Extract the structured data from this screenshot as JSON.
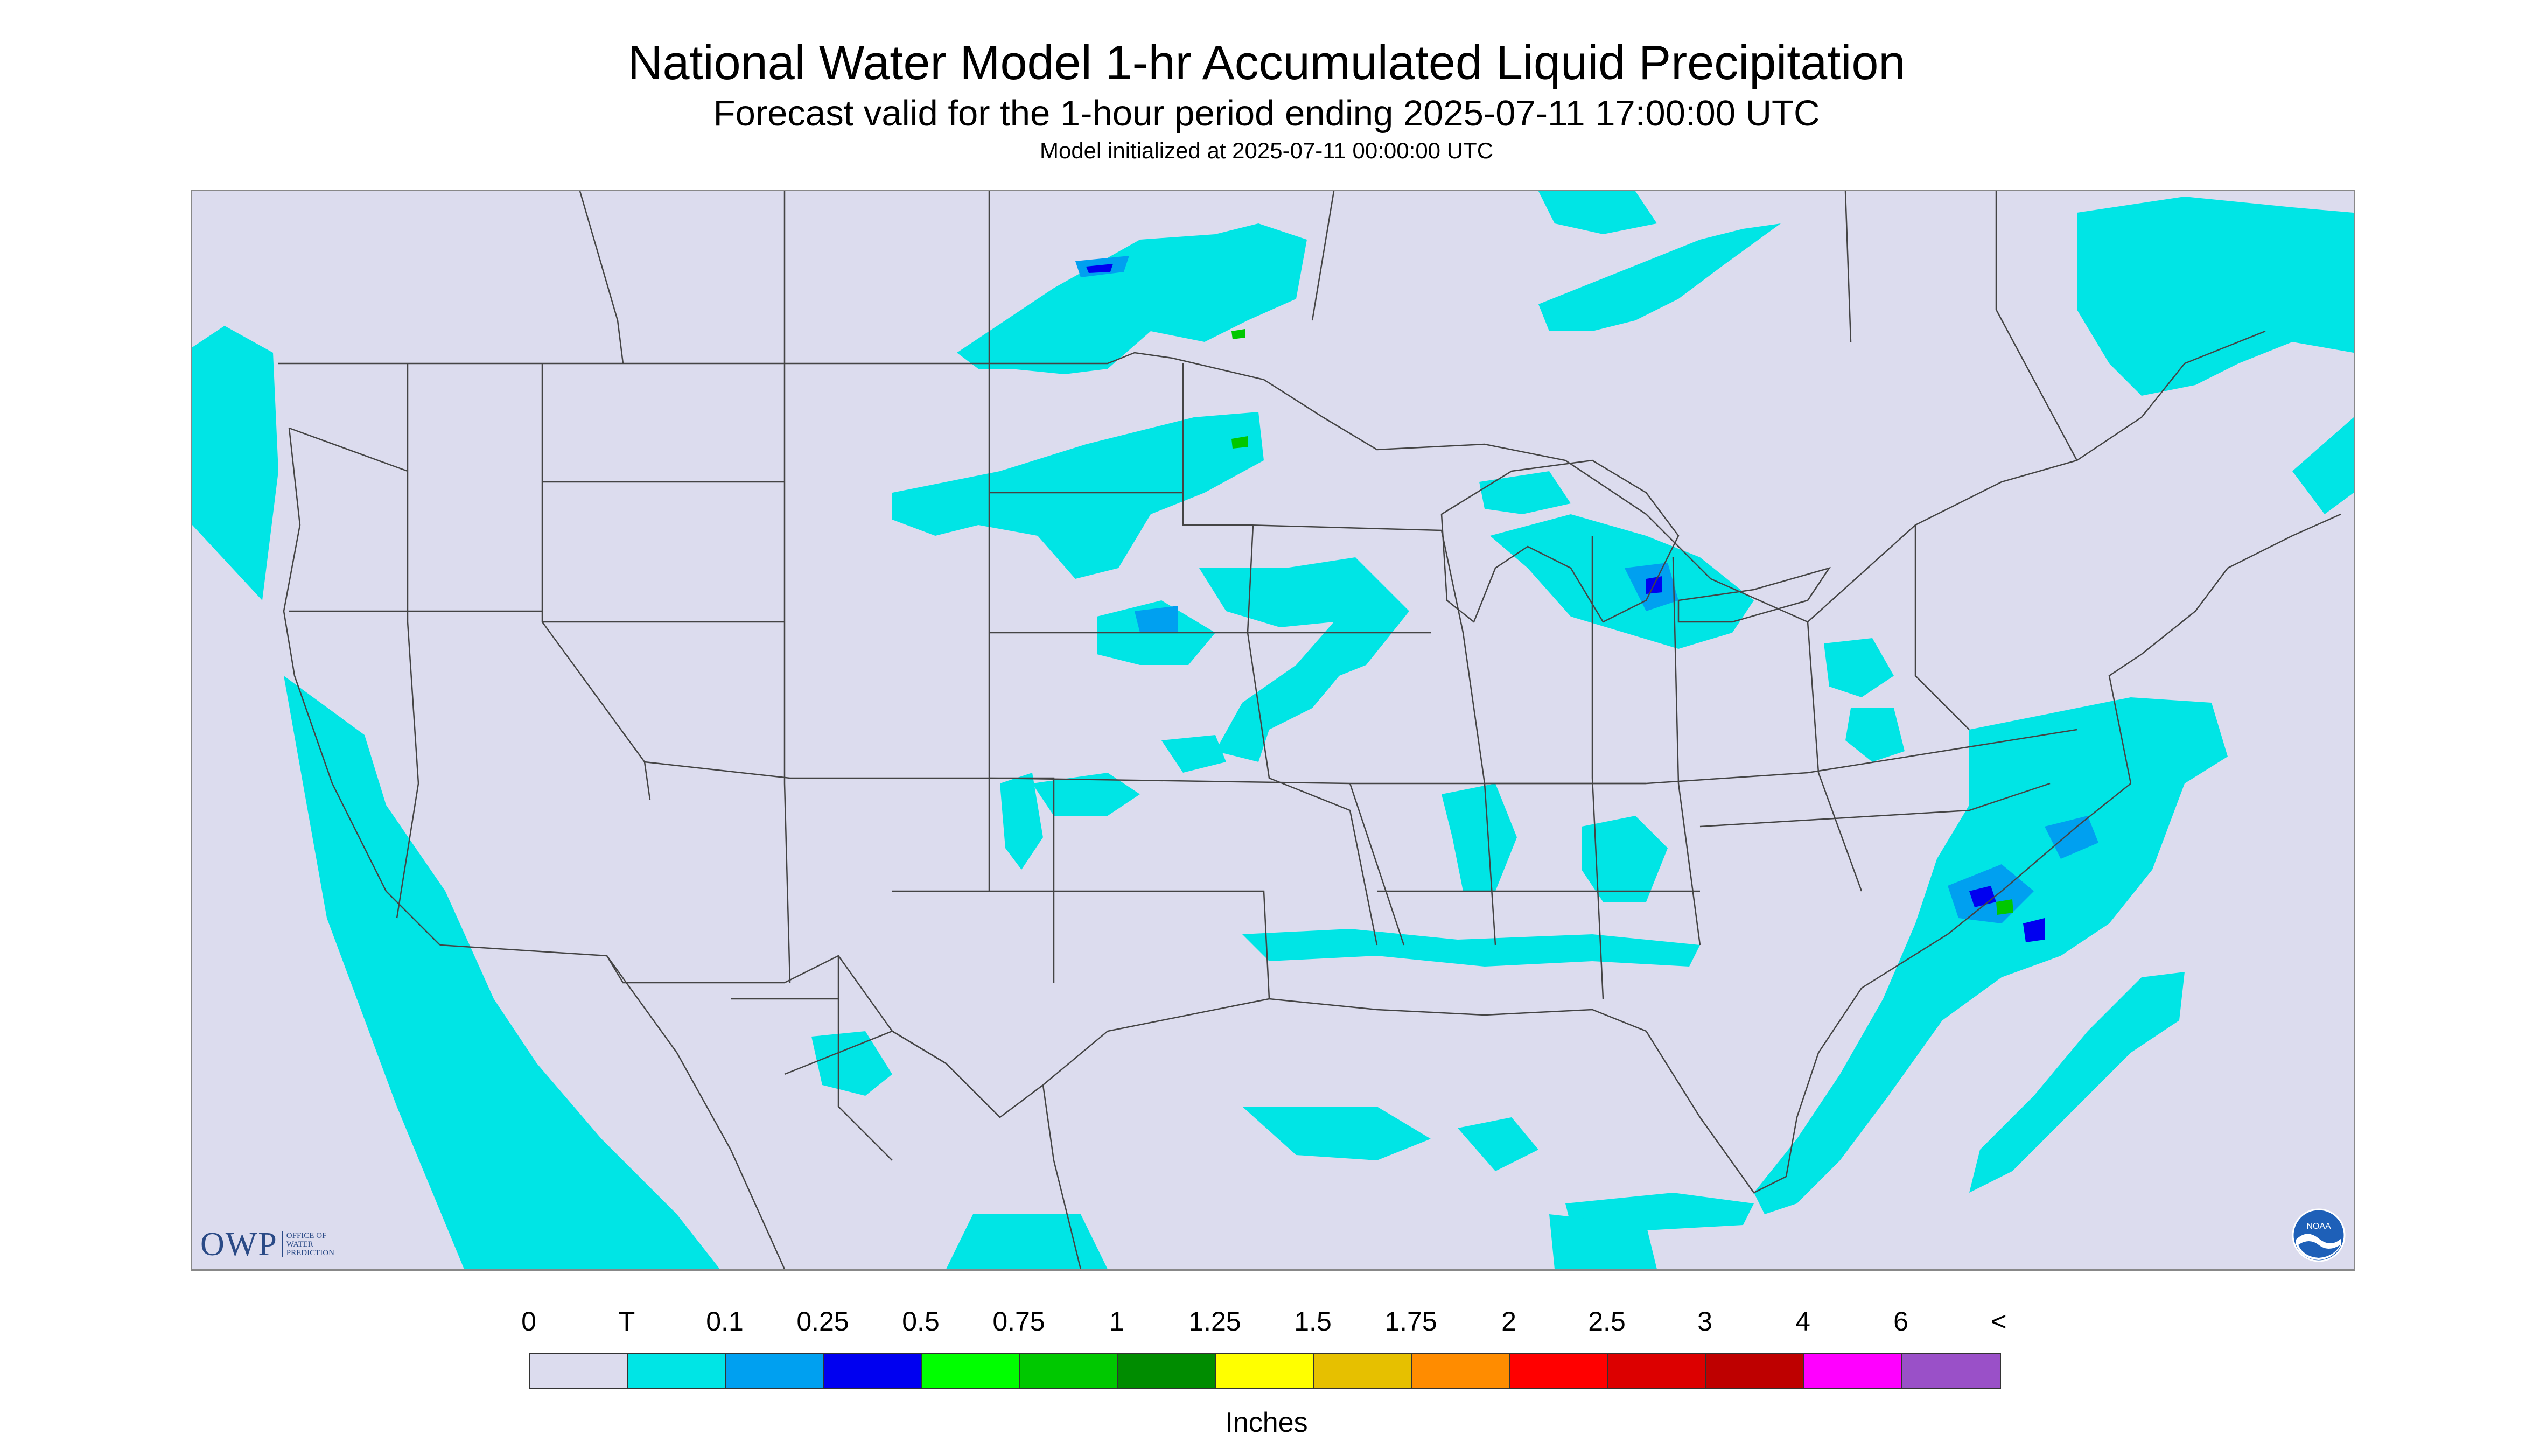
{
  "title": "National Water Model 1-hr Accumulated Liquid Precipitation",
  "subtitle": "Forecast valid for the 1-hour period ending 2025-07-11 17:00:00 UTC",
  "init_note": "Model initialized at 2025-07-11 00:00:00 UTC",
  "logos": {
    "owp_mark": "OWP",
    "owp_text": [
      "OFFICE OF",
      "WATER",
      "PREDICTION"
    ],
    "noaa_text": "NOAA"
  },
  "colors": {
    "background_no_data": "#dcdcee",
    "map_border": "#888888",
    "boundary_lines": "#444444"
  },
  "legend": {
    "tick_labels": [
      "0",
      "T",
      "0.1",
      "0.25",
      "0.5",
      "0.75",
      "1",
      "1.25",
      "1.5",
      "1.75",
      "2",
      "2.5",
      "3",
      "4",
      "6",
      "<"
    ],
    "bins": [
      {
        "from": "0",
        "to": "T",
        "color": "#dcdcee"
      },
      {
        "from": "T",
        "to": "0.1",
        "color": "#00e5e5"
      },
      {
        "from": "0.1",
        "to": "0.25",
        "color": "#00a0f0"
      },
      {
        "from": "0.25",
        "to": "0.5",
        "color": "#0000f0"
      },
      {
        "from": "0.5",
        "to": "0.75",
        "color": "#00ff00"
      },
      {
        "from": "0.75",
        "to": "1",
        "color": "#00c800"
      },
      {
        "from": "1",
        "to": "1.25",
        "color": "#008c00"
      },
      {
        "from": "1.25",
        "to": "1.5",
        "color": "#ffff00"
      },
      {
        "from": "1.5",
        "to": "1.75",
        "color": "#e6c000"
      },
      {
        "from": "1.75",
        "to": "2",
        "color": "#ff8c00"
      },
      {
        "from": "2",
        "to": "2.5",
        "color": "#ff0000"
      },
      {
        "from": "2.5",
        "to": "3",
        "color": "#dc0000"
      },
      {
        "from": "3",
        "to": "4",
        "color": "#be0000"
      },
      {
        "from": "4",
        "to": "6",
        "color": "#ff00ff"
      },
      {
        "from": "6",
        "to": "<",
        "color": "#9a50c8"
      }
    ],
    "units": "Inches"
  }
}
